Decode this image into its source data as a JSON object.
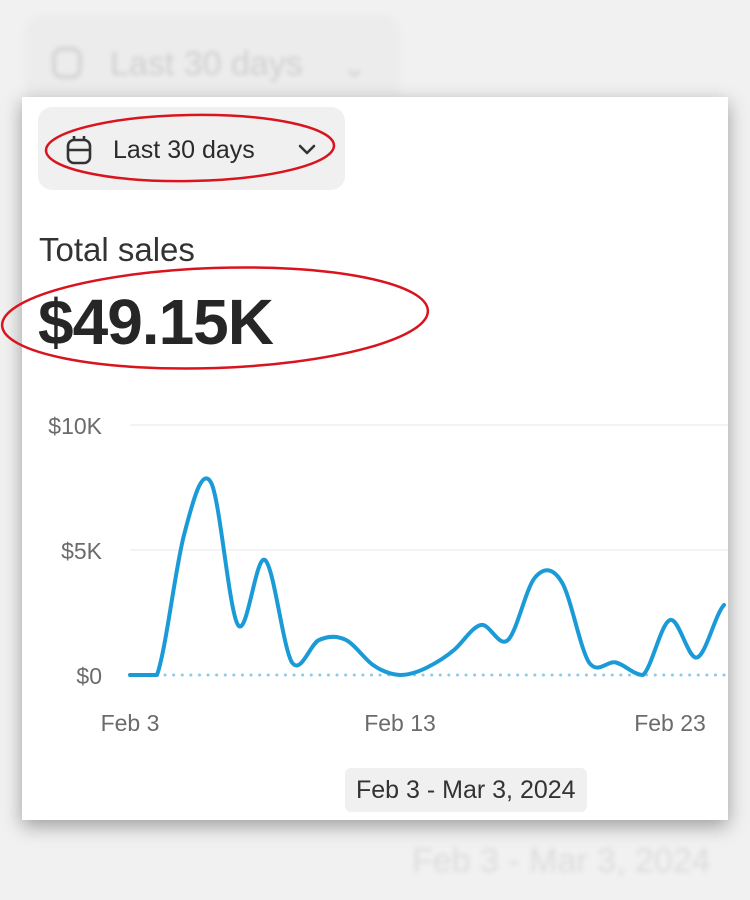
{
  "date_filter": {
    "label": "Last 30 days",
    "icon": "calendar-icon",
    "chevron": "chevron-down-icon"
  },
  "metric": {
    "title": "Total sales",
    "value": "$49.15K"
  },
  "date_range": "Feb 3 - Mar 3, 2024",
  "colors": {
    "line": "#1a9bd7",
    "baseline": "#8fcbe8",
    "annotation": "#d9141e"
  },
  "chart_data": {
    "type": "line",
    "title": "",
    "xlabel": "",
    "ylabel": "",
    "x": [
      "Feb 3",
      "Feb 4",
      "Feb 5",
      "Feb 6",
      "Feb 7",
      "Feb 8",
      "Feb 9",
      "Feb 10",
      "Feb 11",
      "Feb 12",
      "Feb 13",
      "Feb 14",
      "Feb 15",
      "Feb 16",
      "Feb 17",
      "Feb 18",
      "Feb 19",
      "Feb 20",
      "Feb 21",
      "Feb 22",
      "Feb 23",
      "Feb 24",
      "Feb 25"
    ],
    "values": [
      0,
      0,
      5600,
      7700,
      2000,
      4600,
      500,
      1400,
      1400,
      400,
      0,
      300,
      1000,
      2000,
      1400,
      3900,
      3700,
      500,
      500,
      0,
      2200,
      700,
      2800
    ],
    "ylim": [
      0,
      10000
    ],
    "y_ticks": [
      {
        "value": 0,
        "label": "$0"
      },
      {
        "value": 5000,
        "label": "$5K"
      },
      {
        "value": 10000,
        "label": "$10K"
      }
    ],
    "x_ticks": [
      {
        "index": 0,
        "label": "Feb 3"
      },
      {
        "index": 10,
        "label": "Feb 13"
      },
      {
        "index": 20,
        "label": "Feb 23"
      }
    ],
    "grid": true,
    "baseline": "dotted"
  }
}
